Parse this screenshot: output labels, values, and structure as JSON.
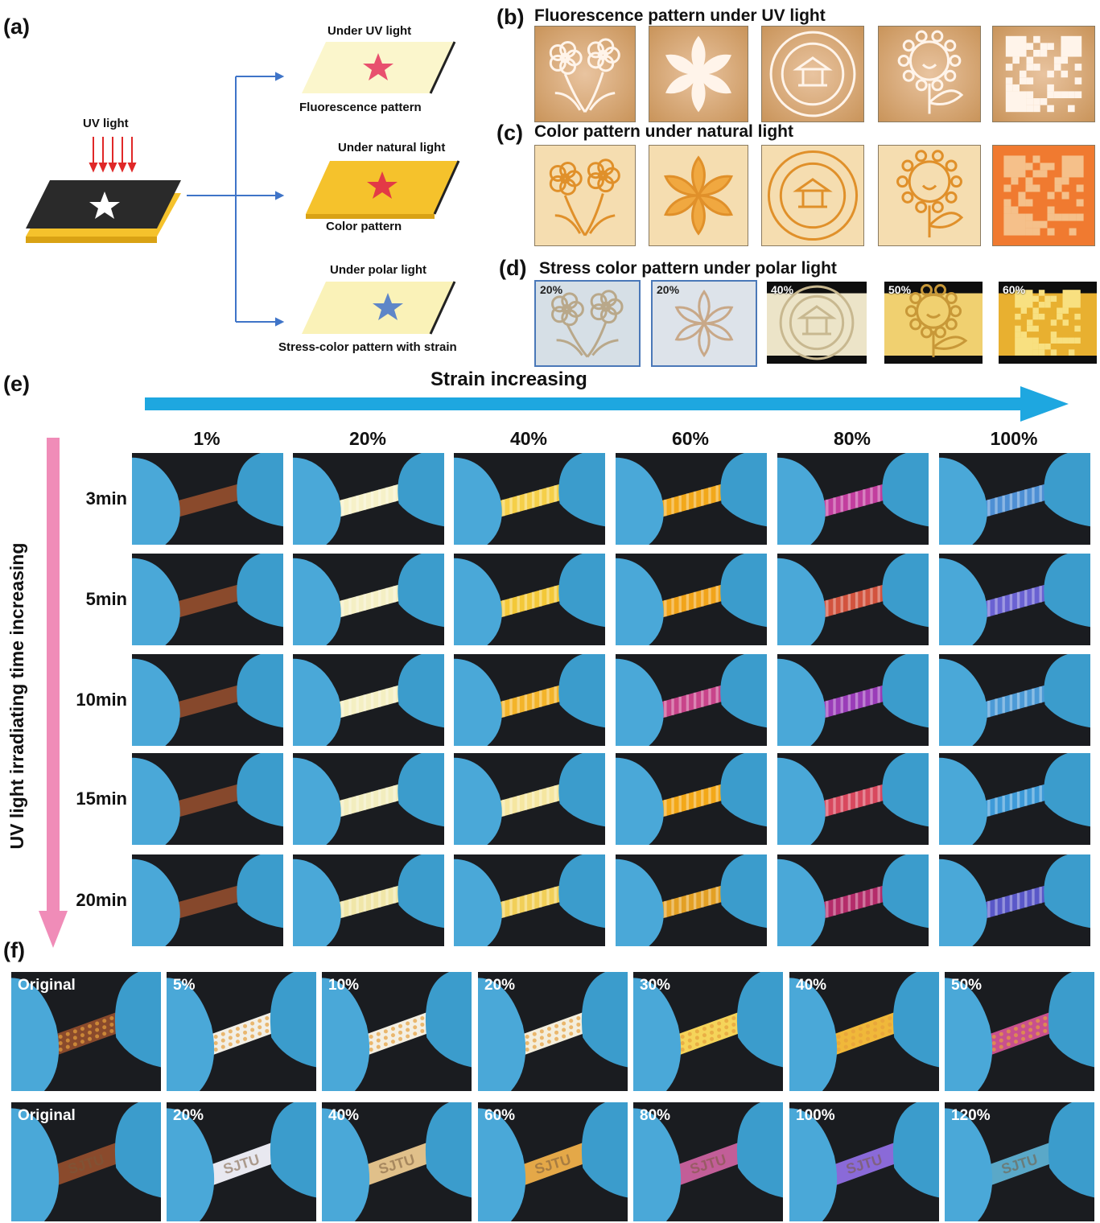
{
  "panel_a": {
    "label": "(a)",
    "uv_light": "UV light",
    "branches": [
      {
        "top": "Under UV light",
        "bottom": "Fluorescence  pattern",
        "plate_color": "#fbf6cc",
        "star_color": "#e8506e"
      },
      {
        "top": "Under natural light",
        "bottom": "Color pattern",
        "plate_color": "#f5c22c",
        "star_color": "#e33a46"
      },
      {
        "top": "Under polar light",
        "bottom": "Stress-color pattern with strain",
        "plate_color": "#faf2b8",
        "star_color": "#5e86c8"
      }
    ]
  },
  "panel_b": {
    "label": "(b)",
    "title": "Fluorescence pattern under UV light",
    "motifs": [
      "flowers-icon",
      "lily-icon",
      "seal-icon",
      "smiley-flower-icon",
      "qr-code-icon"
    ]
  },
  "panel_c": {
    "label": "(c)",
    "title": "Color pattern under natural light",
    "motifs": [
      "flowers-icon",
      "lily-icon",
      "seal-icon",
      "smiley-flower-icon",
      "qr-code-icon"
    ]
  },
  "panel_d": {
    "label": "(d)",
    "title": "Stress color pattern under polar light",
    "tiles": [
      {
        "strain": "20%",
        "motif": "flowers-icon"
      },
      {
        "strain": "20%",
        "motif": "lily-icon"
      },
      {
        "strain": "40%",
        "motif": "seal-icon"
      },
      {
        "strain": "50%",
        "motif": "smiley-flower-icon"
      },
      {
        "strain": "60%",
        "motif": "qr-code-icon"
      }
    ]
  },
  "panel_e": {
    "label": "(e)",
    "x_arrow": "Strain increasing",
    "y_arrow": "UV light irradiating time increasing",
    "columns": [
      "1%",
      "20%",
      "40%",
      "60%",
      "80%",
      "100%"
    ],
    "rows": [
      "3min",
      "5min",
      "10min",
      "15min",
      "20min"
    ],
    "strip_colors": [
      [
        "#8a4a2c",
        "#f6f1c8",
        "#f5cf48",
        "#f2a81a",
        "#c23e9e",
        "#4e8fd4"
      ],
      [
        "#8a4a2c",
        "#f4efc4",
        "#f3c838",
        "#f1a41a",
        "#d2533e",
        "#6a62d2"
      ],
      [
        "#86482c",
        "#f4efc2",
        "#f3b42a",
        "#c8448a",
        "#9a3cb8",
        "#4c9ad6"
      ],
      [
        "#86482c",
        "#f2edbe",
        "#f5e6a0",
        "#f3a818",
        "#d8485e",
        "#3e9ad8"
      ],
      [
        "#86482c",
        "#f0e6a8",
        "#f1cf58",
        "#e3a024",
        "#b42c6a",
        "#5a58c8"
      ]
    ]
  },
  "panel_f": {
    "label": "(f)",
    "rows": [
      {
        "labels": [
          "Original",
          "5%",
          "10%",
          "20%",
          "30%",
          "40%",
          "50%"
        ],
        "colors": [
          "#8a4a2c",
          "#f2efe6",
          "#f4efe2",
          "#f4eedc",
          "#f5d45a",
          "#f0b83a",
          "#c8508e"
        ],
        "pattern": "dots"
      },
      {
        "labels": [
          "Original",
          "20%",
          "40%",
          "60%",
          "80%",
          "100%",
          "120%"
        ],
        "colors": [
          "#8a4a2c",
          "#e8e8f0",
          "#e0c08a",
          "#e4a848",
          "#c25e98",
          "#8a6ad8",
          "#5aa8c8"
        ],
        "pattern": "text",
        "text": "SJTU"
      }
    ]
  }
}
